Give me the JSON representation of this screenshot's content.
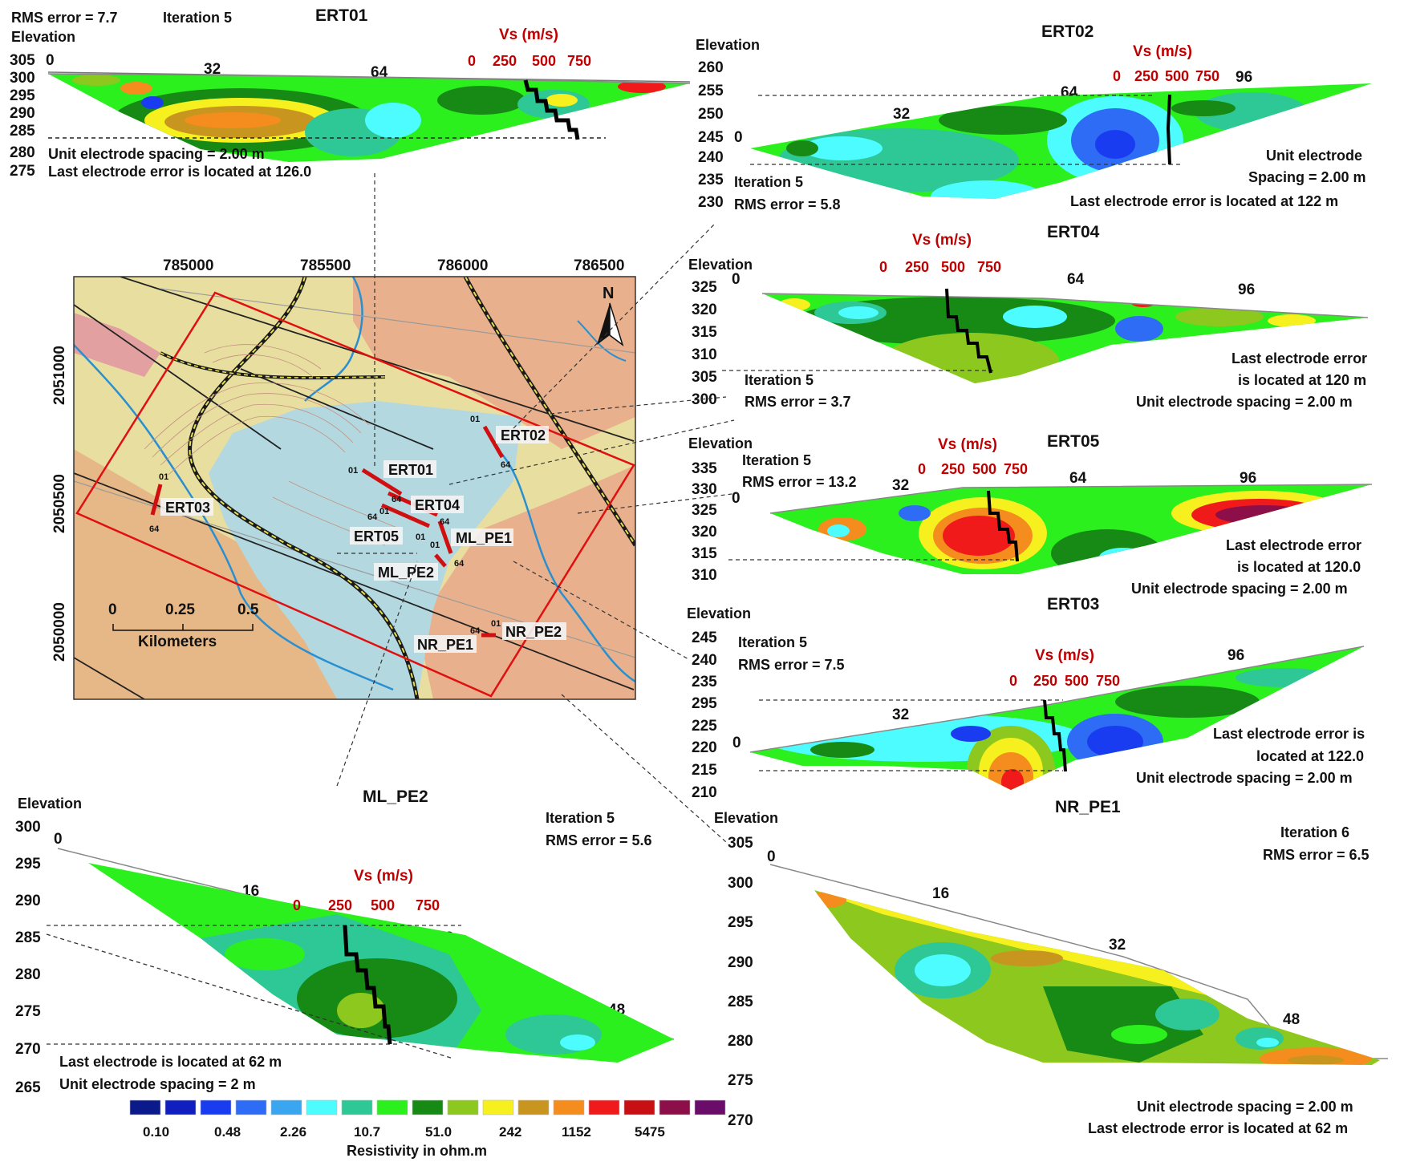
{
  "vs_label": "Vs (m/s)",
  "vs_ticks": [
    "0",
    "250",
    "500",
    "750"
  ],
  "elevation_label": "Elevation",
  "ert01": {
    "title": "ERT01",
    "rms": "RMS error = 7.7",
    "iteration": "Iteration 5",
    "elev_ticks": [
      "305",
      "300",
      "295",
      "290",
      "285",
      "280",
      "275"
    ],
    "dist_ticks": [
      "0",
      "32",
      "64"
    ],
    "note1": "Unit electrode spacing = 2.00 m",
    "note2": "Last electrode error is located at 126.0"
  },
  "ert02": {
    "title": "ERT02",
    "elev_ticks": [
      "260",
      "255",
      "250",
      "245",
      "240",
      "235",
      "230"
    ],
    "dist_ticks": [
      "0",
      "32",
      "64",
      "96"
    ],
    "iteration": "Iteration 5",
    "rms": "RMS error = 5.8",
    "note1": "Unit electrode",
    "note2": "Spacing = 2.00 m",
    "note3": "Last electrode error is located at 122 m"
  },
  "ert04": {
    "title": "ERT04",
    "elev_ticks": [
      "325",
      "320",
      "315",
      "310",
      "305",
      "300"
    ],
    "dist_ticks": [
      "0",
      "64",
      "96"
    ],
    "iteration": "Iteration 5",
    "rms": "RMS error = 3.7",
    "note1": "Last electrode error",
    "note2": "is located at 120 m",
    "note3": "Unit electrode spacing = 2.00 m"
  },
  "ert05": {
    "title": "ERT05",
    "elev_ticks": [
      "335",
      "330",
      "325",
      "320",
      "315",
      "310"
    ],
    "dist_ticks": [
      "0",
      "32",
      "64",
      "96"
    ],
    "iteration": "Iteration 5",
    "rms": "RMS error = 13.2",
    "note1": "Last electrode error",
    "note2": "is located at 120.0",
    "note3": "Unit electrode spacing = 2.00 m"
  },
  "ert03": {
    "title": "ERT03",
    "elev_ticks": [
      "245",
      "240",
      "235",
      "295",
      "225",
      "220",
      "215",
      "210"
    ],
    "dist_ticks": [
      "0",
      "32",
      "96"
    ],
    "iteration": "Iteration 5",
    "rms": "RMS error = 7.5",
    "note1": "Last electrode error is",
    "note2": "located at 122.0",
    "note3": "Unit electrode spacing = 2.00 m"
  },
  "mlpe2": {
    "title": "ML_PE2",
    "elev_ticks": [
      "300",
      "295",
      "290",
      "285",
      "280",
      "275",
      "270",
      "265"
    ],
    "dist_ticks": [
      "0",
      "16",
      "32",
      "48"
    ],
    "iteration": "Iteration 5",
    "rms": "RMS error = 5.6",
    "note1": "Last electrode is located at 62 m",
    "note2": "Unit electrode spacing = 2 m"
  },
  "nrpe1": {
    "title": "NR_PE1",
    "elev_ticks": [
      "305",
      "300",
      "295",
      "290",
      "285",
      "280",
      "275",
      "270"
    ],
    "dist_ticks": [
      "0",
      "16",
      "32",
      "48"
    ],
    "iteration": "Iteration 6",
    "rms": "RMS error = 6.5",
    "note1": "Unit electrode spacing = 2.00 m",
    "note2": "Last electrode error is located at 62 m"
  },
  "map": {
    "easting_ticks": [
      "785000",
      "785500",
      "786000",
      "786500"
    ],
    "northing_ticks": [
      "2051000",
      "2050500",
      "2050000"
    ],
    "north": "N",
    "scale_ticks": [
      "0",
      "0.25",
      "0.5"
    ],
    "scale_unit": "Kilometers",
    "profile_labels": [
      "ERT01",
      "ERT02",
      "ERT03",
      "ERT04",
      "ERT05",
      "ML_PE1",
      "ML_PE2",
      "NR_PE1",
      "NR_PE2"
    ],
    "endpoint_labels": [
      "01",
      "64"
    ]
  },
  "legend": {
    "title": "Resistivity in ohm.m",
    "tick_labels": [
      "0.10",
      "0.48",
      "2.26",
      "10.7",
      "51.0",
      "242",
      "1152",
      "5475"
    ],
    "colors": [
      "#0a1a8a",
      "#1020c0",
      "#1a3cf0",
      "#2f6cf5",
      "#3aa6f0",
      "#4dfcff",
      "#2ec896",
      "#2bf01e",
      "#178a16",
      "#8cc81e",
      "#f5f01e",
      "#c8961e",
      "#f58c1e",
      "#f01a1a",
      "#c80f14",
      "#8c0f4a",
      "#6a0c6a"
    ]
  },
  "colors": {
    "vs_red": "#c00000",
    "profile_red": "#d01010",
    "map_boundary": "#e01010"
  }
}
